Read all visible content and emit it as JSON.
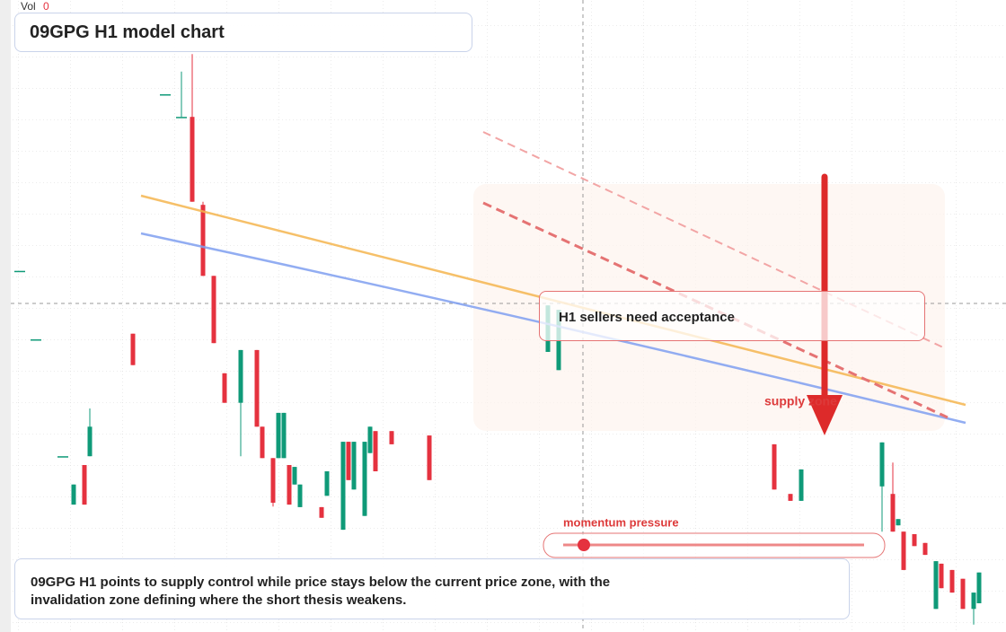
{
  "chart_data": {
    "type": "candlestick",
    "title": "09GPG H1 model chart",
    "volume_label": "Vol",
    "volume_value": 0,
    "annotations": [
      "H1 sellers need acceptance",
      "supply zone",
      "momentum pressure"
    ],
    "description": "09GPG H1 points to supply control while price stays below the current price zone, with the invalidation zone defining where the short thesis weakens.",
    "up_color": "#0f9a78",
    "down_color": "#e5323f",
    "xlim": [
      0,
      185
    ],
    "ylim": [
      0,
      100
    ],
    "x": [
      2,
      5,
      10,
      12,
      14,
      15,
      23,
      29,
      32,
      34,
      36,
      38,
      40,
      43,
      46,
      47,
      49,
      50,
      51,
      52,
      53,
      54,
      58,
      59,
      62,
      63,
      64,
      66,
      67,
      68,
      71,
      78,
      100,
      102,
      142,
      145,
      147,
      162,
      164,
      165,
      166,
      168,
      170,
      172,
      173,
      175,
      177,
      179,
      180
    ],
    "open": [
      56.9,
      46.0,
      27.4,
      19.7,
      26.0,
      27.4,
      46.9,
      85.0,
      81.4,
      81.4,
      67.4,
      56.1,
      40.6,
      35.9,
      44.3,
      32.1,
      27.1,
      27.1,
      27.1,
      26.0,
      22.9,
      19.3,
      19.3,
      21.1,
      15.7,
      29.7,
      22.1,
      17.9,
      27.9,
      31.4,
      31.4,
      30.7,
      44.0,
      41.1,
      29.3,
      21.4,
      20.3,
      22.6,
      21.4,
      16.4,
      15.4,
      15.0,
      13.6,
      3.1,
      10.3,
      9.3,
      7.9,
      3.1,
      4.0
    ],
    "high": [
      56.9,
      46.0,
      27.4,
      22.9,
      26.0,
      35.0,
      46.9,
      85.0,
      88.6,
      91.4,
      67.9,
      56.1,
      40.6,
      44.3,
      44.3,
      32.1,
      27.1,
      34.3,
      34.3,
      26.0,
      25.7,
      22.9,
      19.3,
      25.0,
      29.7,
      29.7,
      29.7,
      29.7,
      32.1,
      31.4,
      31.4,
      30.7,
      51.4,
      50.7,
      29.3,
      21.4,
      25.3,
      29.6,
      26.4,
      17.4,
      15.4,
      15.0,
      13.6,
      10.7,
      10.3,
      9.3,
      7.9,
      5.7,
      8.9
    ],
    "low": [
      56.9,
      46.0,
      27.4,
      19.7,
      19.7,
      27.4,
      41.9,
      85.0,
      81.4,
      67.9,
      56.1,
      45.4,
      35.9,
      27.4,
      32.1,
      27.1,
      19.4,
      27.1,
      27.1,
      19.7,
      22.9,
      19.3,
      17.6,
      21.1,
      15.7,
      23.6,
      22.1,
      17.9,
      27.9,
      25.0,
      29.3,
      23.6,
      44.0,
      41.1,
      22.1,
      20.3,
      20.3,
      15.4,
      15.4,
      16.4,
      9.3,
      13.1,
      11.7,
      3.1,
      6.4,
      5.7,
      3.1,
      0.6,
      4.0
    ],
    "close": [
      56.9,
      46.0,
      27.4,
      22.9,
      19.7,
      32.1,
      41.9,
      85.0,
      81.4,
      67.9,
      56.1,
      45.4,
      35.9,
      44.3,
      32.1,
      27.1,
      20.0,
      34.3,
      34.3,
      19.7,
      25.7,
      22.9,
      17.6,
      25.0,
      29.7,
      23.6,
      29.7,
      29.7,
      32.1,
      25.0,
      29.3,
      23.6,
      51.4,
      50.7,
      22.1,
      20.3,
      25.3,
      29.6,
      15.4,
      17.4,
      9.3,
      13.1,
      11.7,
      10.7,
      6.4,
      5.7,
      3.1,
      5.7,
      8.9
    ]
  }
}
